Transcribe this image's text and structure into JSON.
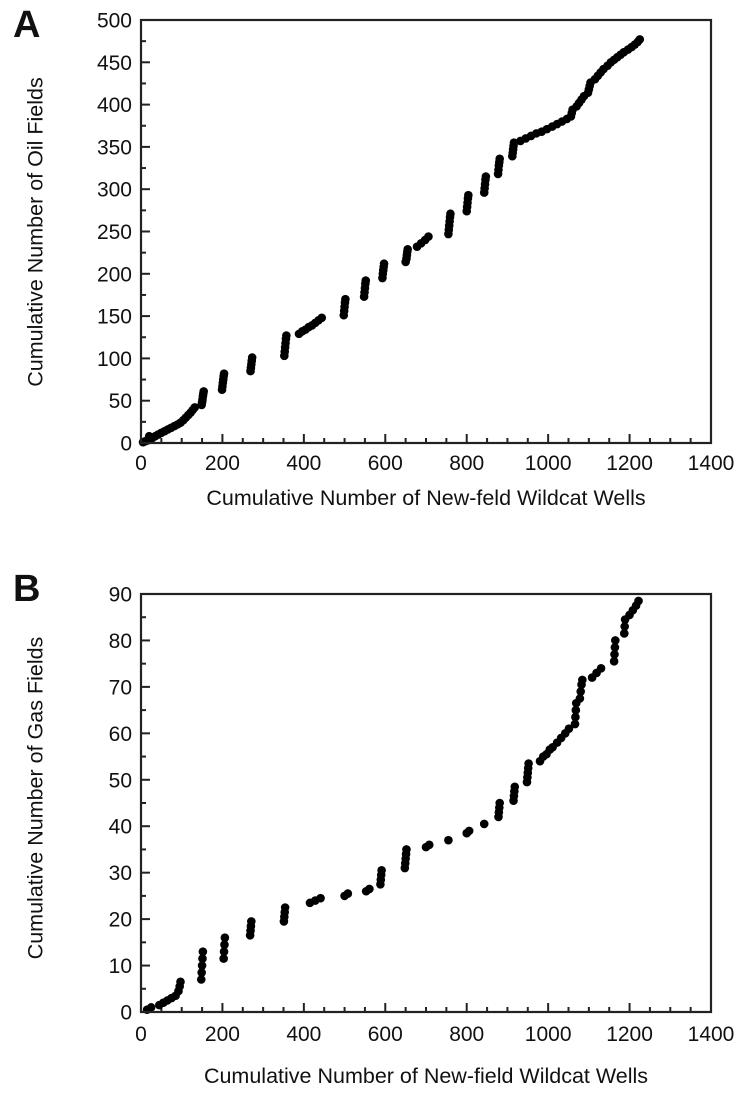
{
  "chart_data": [
    {
      "type": "scatter",
      "panel_label": "A",
      "xlabel": "Cumulative Number of New-feld Wildcat Wells",
      "ylabel": "Cumulative Number of Oil Fields",
      "xlim": [
        0,
        1400
      ],
      "ylim": [
        0,
        500
      ],
      "xticks": [
        0,
        200,
        400,
        600,
        800,
        1000,
        1200,
        1400
      ],
      "yticks": [
        0,
        50,
        100,
        150,
        200,
        250,
        300,
        350,
        400,
        450,
        500
      ],
      "x_minor_interval": 50,
      "y_minor_interval": 25,
      "grid": false,
      "legend": "none",
      "marker_color": "#000000",
      "frame_color": "#222222",
      "text_color": "#111111",
      "marker_radius_px": 4.3,
      "points": [
        [
          5,
          1
        ],
        [
          10,
          2
        ],
        [
          16,
          3
        ],
        [
          22,
          4
        ],
        [
          28,
          6
        ],
        [
          20,
          8
        ],
        [
          35,
          8
        ],
        [
          42,
          10
        ],
        [
          50,
          12
        ],
        [
          58,
          14
        ],
        [
          66,
          16
        ],
        [
          74,
          18
        ],
        [
          82,
          20
        ],
        [
          90,
          22
        ],
        [
          97,
          24
        ],
        [
          104,
          27
        ],
        [
          110,
          30
        ],
        [
          116,
          33
        ],
        [
          122,
          36
        ],
        [
          127,
          39
        ],
        [
          132,
          42
        ],
        [
          149,
          45
        ],
        [
          150,
          48
        ],
        [
          151,
          51
        ],
        [
          152,
          55
        ],
        [
          153,
          58
        ],
        [
          154,
          61
        ],
        [
          199,
          63
        ],
        [
          200,
          67
        ],
        [
          201,
          71
        ],
        [
          202,
          75
        ],
        [
          203,
          79
        ],
        [
          204,
          82
        ],
        [
          269,
          85
        ],
        [
          270,
          89
        ],
        [
          271,
          93
        ],
        [
          272,
          97
        ],
        [
          273,
          101
        ],
        [
          352,
          103
        ],
        [
          353,
          108
        ],
        [
          354,
          113
        ],
        [
          355,
          118
        ],
        [
          356,
          123
        ],
        [
          357,
          127
        ],
        [
          388,
          129
        ],
        [
          396,
          132
        ],
        [
          404,
          134
        ],
        [
          412,
          137
        ],
        [
          420,
          139
        ],
        [
          428,
          142
        ],
        [
          436,
          145
        ],
        [
          444,
          148
        ],
        [
          498,
          151
        ],
        [
          499,
          156
        ],
        [
          500,
          161
        ],
        [
          501,
          166
        ],
        [
          502,
          170
        ],
        [
          548,
          173
        ],
        [
          549,
          178
        ],
        [
          550,
          183
        ],
        [
          551,
          188
        ],
        [
          552,
          192
        ],
        [
          593,
          195
        ],
        [
          594,
          200
        ],
        [
          595,
          204
        ],
        [
          596,
          208
        ],
        [
          597,
          212
        ],
        [
          650,
          214
        ],
        [
          652,
          218
        ],
        [
          653,
          222
        ],
        [
          654,
          226
        ],
        [
          655,
          229
        ],
        [
          678,
          232
        ],
        [
          688,
          236
        ],
        [
          698,
          240
        ],
        [
          706,
          244
        ],
        [
          755,
          247
        ],
        [
          756,
          252
        ],
        [
          757,
          257
        ],
        [
          758,
          262
        ],
        [
          759,
          267
        ],
        [
          760,
          271
        ],
        [
          800,
          274
        ],
        [
          801,
          279
        ],
        [
          802,
          284
        ],
        [
          803,
          289
        ],
        [
          804,
          293
        ],
        [
          843,
          296
        ],
        [
          844,
          301
        ],
        [
          845,
          306
        ],
        [
          846,
          311
        ],
        [
          847,
          315
        ],
        [
          877,
          318
        ],
        [
          878,
          323
        ],
        [
          879,
          328
        ],
        [
          880,
          332
        ],
        [
          881,
          336
        ],
        [
          912,
          339
        ],
        [
          913,
          343
        ],
        [
          914,
          347
        ],
        [
          915,
          351
        ],
        [
          916,
          355
        ],
        [
          932,
          357
        ],
        [
          945,
          360
        ],
        [
          958,
          363
        ],
        [
          971,
          366
        ],
        [
          984,
          368
        ],
        [
          997,
          371
        ],
        [
          1010,
          374
        ],
        [
          1022,
          377
        ],
        [
          1034,
          380
        ],
        [
          1046,
          383
        ],
        [
          1056,
          386
        ],
        [
          1058,
          390
        ],
        [
          1060,
          394
        ],
        [
          1070,
          398
        ],
        [
          1076,
          402
        ],
        [
          1082,
          406
        ],
        [
          1088,
          410
        ],
        [
          1098,
          414
        ],
        [
          1100,
          418
        ],
        [
          1102,
          422
        ],
        [
          1104,
          426
        ],
        [
          1115,
          430
        ],
        [
          1122,
          434
        ],
        [
          1129,
          438
        ],
        [
          1136,
          442
        ],
        [
          1146,
          446
        ],
        [
          1154,
          450
        ],
        [
          1162,
          453
        ],
        [
          1170,
          456
        ],
        [
          1178,
          459
        ],
        [
          1186,
          462
        ],
        [
          1196,
          465
        ],
        [
          1205,
          468
        ],
        [
          1213,
          471
        ],
        [
          1220,
          474
        ],
        [
          1225,
          477
        ]
      ]
    },
    {
      "type": "scatter",
      "panel_label": "B",
      "xlabel": "Cumulative Number of New-field Wildcat Wells",
      "ylabel": "Cumulative Number of Gas Fields",
      "xlim": [
        0,
        1400
      ],
      "ylim": [
        0,
        90
      ],
      "xticks": [
        0,
        200,
        400,
        600,
        800,
        1000,
        1200,
        1400
      ],
      "yticks": [
        0,
        10,
        20,
        30,
        40,
        50,
        60,
        70,
        80,
        90
      ],
      "x_minor_interval": 50,
      "y_minor_interval": 5,
      "grid": false,
      "legend": "none",
      "marker_color": "#000000",
      "frame_color": "#222222",
      "text_color": "#111111",
      "marker_radius_px": 4.3,
      "points": [
        [
          15,
          0.5
        ],
        [
          25,
          1
        ],
        [
          45,
          1.5
        ],
        [
          55,
          2
        ],
        [
          65,
          2.5
        ],
        [
          75,
          3
        ],
        [
          85,
          3.5
        ],
        [
          92,
          4.5
        ],
        [
          95,
          5.5
        ],
        [
          97,
          6.5
        ],
        [
          148,
          7
        ],
        [
          149,
          8.5
        ],
        [
          150,
          10
        ],
        [
          151,
          11.5
        ],
        [
          152,
          13
        ],
        [
          203,
          11.5
        ],
        [
          204,
          13
        ],
        [
          205,
          14.5
        ],
        [
          206,
          16
        ],
        [
          268,
          16.5
        ],
        [
          269,
          17.5
        ],
        [
          270,
          18.5
        ],
        [
          271,
          19.5
        ],
        [
          351,
          19.5
        ],
        [
          352,
          20.5
        ],
        [
          353,
          21.5
        ],
        [
          354,
          22.5
        ],
        [
          415,
          23.5
        ],
        [
          428,
          24
        ],
        [
          441,
          24.5
        ],
        [
          500,
          25
        ],
        [
          508,
          25.5
        ],
        [
          553,
          26
        ],
        [
          561,
          26.5
        ],
        [
          588,
          27.5
        ],
        [
          589,
          28.5
        ],
        [
          590,
          29.5
        ],
        [
          591,
          30.5
        ],
        [
          648,
          31
        ],
        [
          649,
          32
        ],
        [
          650,
          33
        ],
        [
          651,
          34
        ],
        [
          652,
          35
        ],
        [
          700,
          35.5
        ],
        [
          708,
          36
        ],
        [
          755,
          37
        ],
        [
          800,
          38.5
        ],
        [
          806,
          39
        ],
        [
          843,
          40.5
        ],
        [
          878,
          42
        ],
        [
          879,
          43
        ],
        [
          880,
          44
        ],
        [
          881,
          45
        ],
        [
          915,
          45.5
        ],
        [
          916,
          46.5
        ],
        [
          917,
          47.5
        ],
        [
          918,
          48.5
        ],
        [
          948,
          49.5
        ],
        [
          949,
          50.5
        ],
        [
          950,
          51.5
        ],
        [
          951,
          52.5
        ],
        [
          952,
          53.5
        ],
        [
          980,
          54
        ],
        [
          988,
          55
        ],
        [
          996,
          55.5
        ],
        [
          1004,
          56.5
        ],
        [
          1011,
          57
        ],
        [
          1022,
          58
        ],
        [
          1032,
          59
        ],
        [
          1042,
          60
        ],
        [
          1051,
          61
        ],
        [
          1066,
          62
        ],
        [
          1067,
          63.5
        ],
        [
          1068,
          65
        ],
        [
          1069,
          66.5
        ],
        [
          1078,
          67.5
        ],
        [
          1080,
          69
        ],
        [
          1082,
          70.5
        ],
        [
          1084,
          71.5
        ],
        [
          1108,
          72
        ],
        [
          1119,
          73
        ],
        [
          1130,
          74
        ],
        [
          1162,
          75.5
        ],
        [
          1163,
          77
        ],
        [
          1164,
          78.5
        ],
        [
          1165,
          80
        ],
        [
          1187,
          81.5
        ],
        [
          1188,
          83
        ],
        [
          1189,
          84.5
        ],
        [
          1200,
          85.5
        ],
        [
          1208,
          86.5
        ],
        [
          1216,
          87.5
        ],
        [
          1222,
          88.5
        ]
      ]
    }
  ]
}
